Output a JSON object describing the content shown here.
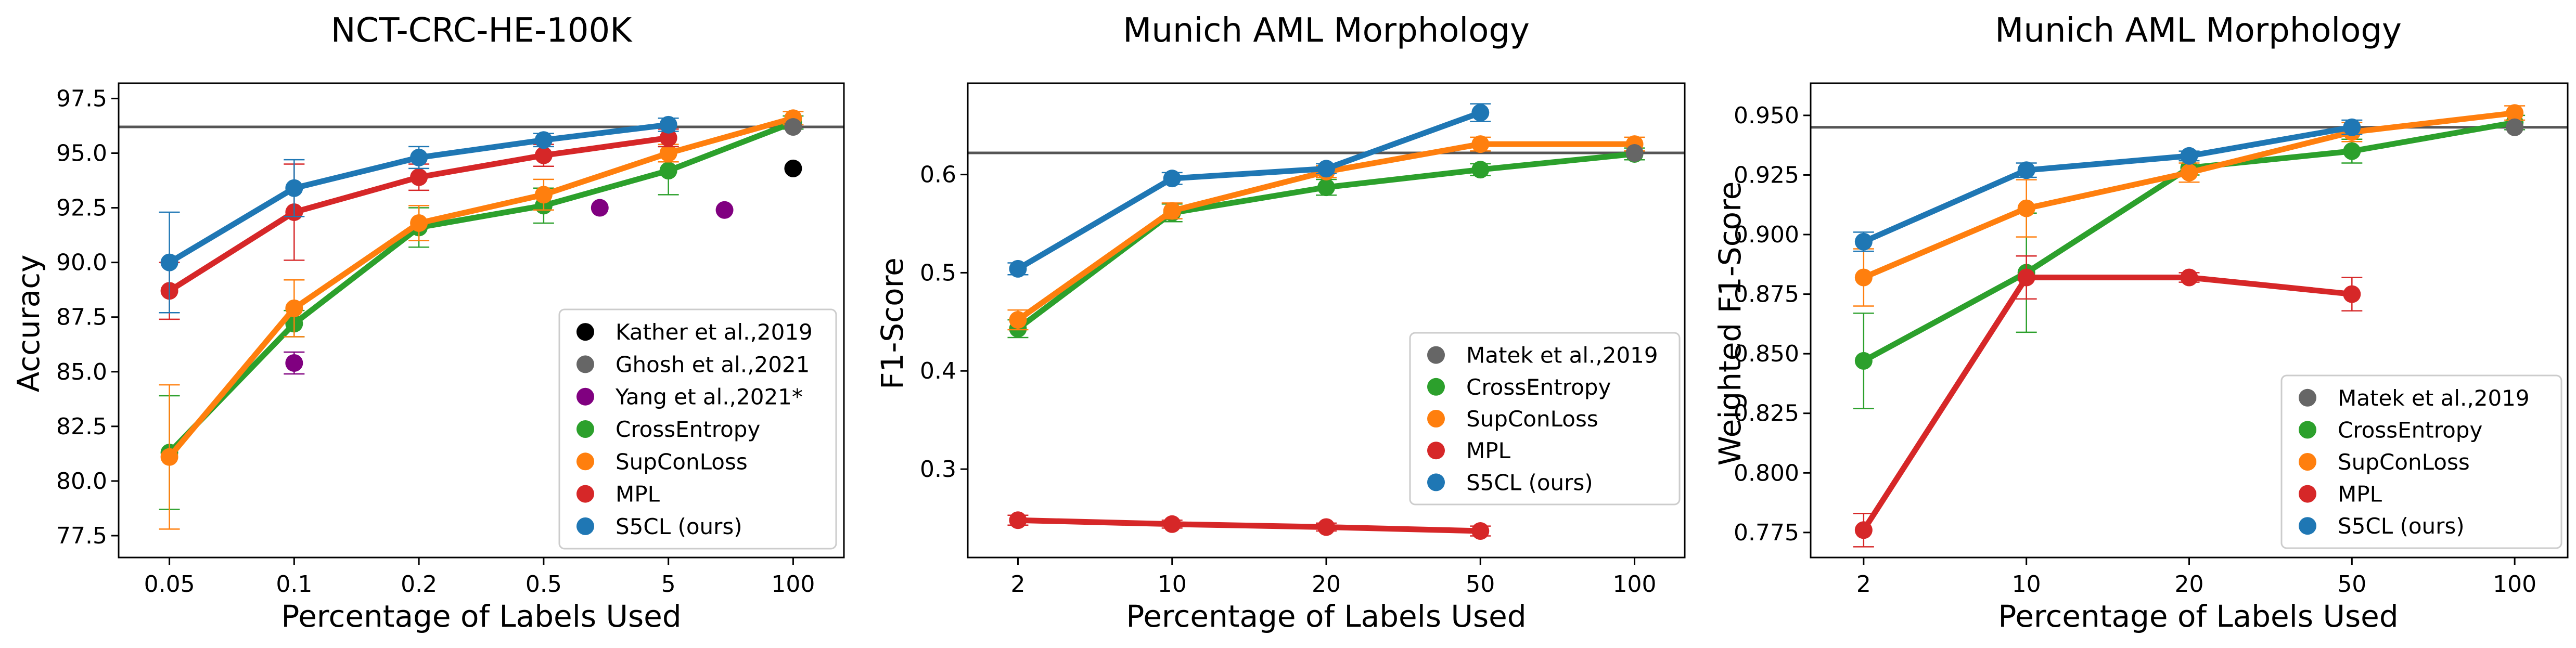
{
  "colors": {
    "green": "#2ca02c",
    "orange": "#ff7f0e",
    "red": "#d62728",
    "blue": "#1f77b4",
    "black": "#000000",
    "gray": "#666666",
    "purple": "#800080",
    "hline": "#555555"
  },
  "chart_data": [
    {
      "type": "line",
      "title": "NCT-CRC-HE-100K",
      "xlabel": "Percentage of Labels Used",
      "ylabel": "Accuracy",
      "categories": [
        "0.05",
        "0.1",
        "0.2",
        "0.5",
        "5",
        "100"
      ],
      "ylim": [
        76.5,
        98.2
      ],
      "yticks": [
        "77.5",
        "80.0",
        "82.5",
        "85.0",
        "87.5",
        "90.0",
        "92.5",
        "95.0",
        "97.5"
      ],
      "reference_line": 96.2,
      "series": [
        {
          "name": "CrossEntropy",
          "color": "green",
          "values": [
            81.3,
            87.2,
            91.6,
            92.6,
            94.2,
            96.4
          ],
          "err": [
            2.6,
            0.6,
            0.9,
            0.8,
            1.1,
            0.3
          ]
        },
        {
          "name": "SupConLoss",
          "color": "orange",
          "values": [
            81.1,
            87.9,
            91.8,
            93.1,
            95.0,
            96.6
          ],
          "err": [
            3.3,
            1.3,
            0.8,
            0.7,
            0.4,
            0.3
          ]
        },
        {
          "name": "MPL",
          "color": "red",
          "values": [
            88.7,
            92.3,
            93.9,
            94.9,
            95.7,
            null
          ],
          "err": [
            1.3,
            2.2,
            0.6,
            0.5,
            0.4,
            null
          ]
        },
        {
          "name": "S5CL (ours)",
          "color": "blue",
          "values": [
            90.0,
            93.4,
            94.8,
            95.6,
            96.3,
            null
          ],
          "err": [
            2.3,
            1.3,
            0.5,
            0.3,
            0.3,
            null
          ]
        }
      ],
      "scatter": [
        {
          "name": "Kather et al.,2019",
          "color": "black",
          "points": [
            {
              "x_index": 5,
              "offset": 0,
              "y": 94.3
            }
          ]
        },
        {
          "name": "Ghosh et al.,2021",
          "color": "gray",
          "points": [
            {
              "x_index": 5,
              "offset": 0,
              "y": 96.2
            }
          ]
        },
        {
          "name": "Yang et al.,2021*",
          "color": "purple",
          "points": [
            {
              "x_index": 1,
              "offset": 0,
              "y": 85.4,
              "err": 0.5
            },
            {
              "x_index": 3,
              "offset": 0.45,
              "y": 92.5
            },
            {
              "x_index": 4,
              "offset": 0.45,
              "y": 92.4
            }
          ]
        }
      ],
      "legend": [
        "Kather et al.,2019",
        "Ghosh et al.,2021",
        "Yang et al.,2021*",
        "CrossEntropy",
        "SupConLoss",
        "MPL",
        "S5CL (ours)"
      ],
      "legend_position": "lower-right"
    },
    {
      "type": "line",
      "title": "Munich AML Morphology",
      "xlabel": "Percentage of Labels Used",
      "ylabel": "F1-Score",
      "categories": [
        "2",
        "10",
        "20",
        "50",
        "100"
      ],
      "ylim": [
        0.21,
        0.693
      ],
      "yticks": [
        "0.3",
        "0.4",
        "0.5",
        "0.6"
      ],
      "reference_line": 0.622,
      "series": [
        {
          "name": "CrossEntropy",
          "color": "green",
          "values": [
            0.443,
            0.561,
            0.587,
            0.605,
            0.621
          ],
          "err": [
            0.009,
            0.009,
            0.008,
            0.006,
            0.006
          ]
        },
        {
          "name": "SupConLoss",
          "color": "orange",
          "values": [
            0.452,
            0.563,
            0.603,
            0.631,
            0.631
          ],
          "err": [
            0.01,
            0.008,
            0.006,
            0.007,
            0.007
          ]
        },
        {
          "name": "MPL",
          "color": "red",
          "values": [
            0.248,
            0.244,
            0.241,
            0.237,
            null
          ],
          "err": [
            0.005,
            0.004,
            0.004,
            0.005,
            null
          ]
        },
        {
          "name": "S5CL (ours)",
          "color": "blue",
          "values": [
            0.504,
            0.596,
            0.606,
            0.663,
            null
          ],
          "err": [
            0.006,
            0.006,
            0.005,
            0.009,
            null
          ]
        }
      ],
      "scatter": [
        {
          "name": "Matek et al.,2019",
          "color": "gray",
          "points": [
            {
              "x_index": 4,
              "offset": 0,
              "y": 0.622
            }
          ]
        }
      ],
      "legend": [
        "Matek et al.,2019",
        "CrossEntropy",
        "SupConLoss",
        "MPL",
        "S5CL (ours)"
      ],
      "legend_position": "right"
    },
    {
      "type": "line",
      "title": "Munich AML Morphology",
      "xlabel": "Percentage of Labels Used",
      "ylabel": "Weighted F1-Score",
      "categories": [
        "2",
        "10",
        "20",
        "50",
        "100"
      ],
      "ylim": [
        0.7645,
        0.9635
      ],
      "yticks": [
        "0.775",
        "0.800",
        "0.825",
        "0.850",
        "0.875",
        "0.900",
        "0.925",
        "0.950"
      ],
      "reference_line": 0.945,
      "series": [
        {
          "name": "CrossEntropy",
          "color": "green",
          "values": [
            0.847,
            0.884,
            0.928,
            0.935,
            0.947
          ],
          "err": [
            0.02,
            0.025,
            0.003,
            0.005,
            0.003
          ]
        },
        {
          "name": "SupConLoss",
          "color": "orange",
          "values": [
            0.882,
            0.911,
            0.926,
            0.943,
            0.951
          ],
          "err": [
            0.012,
            0.012,
            0.004,
            0.004,
            0.003
          ]
        },
        {
          "name": "MPL",
          "color": "red",
          "values": [
            0.776,
            0.882,
            0.882,
            0.875,
            null
          ],
          "err": [
            0.007,
            0.009,
            0.002,
            0.007,
            null
          ]
        },
        {
          "name": "S5CL (ours)",
          "color": "blue",
          "values": [
            0.897,
            0.927,
            0.933,
            0.945,
            null
          ],
          "err": [
            0.004,
            0.003,
            0.002,
            0.003,
            null
          ]
        }
      ],
      "scatter": [
        {
          "name": "Matek et al.,2019",
          "color": "gray",
          "points": [
            {
              "x_index": 4,
              "offset": 0,
              "y": 0.945
            }
          ]
        }
      ],
      "legend": [
        "Matek et al.,2019",
        "CrossEntropy",
        "SupConLoss",
        "MPL",
        "S5CL (ours)"
      ],
      "legend_position": "lower-right"
    }
  ]
}
